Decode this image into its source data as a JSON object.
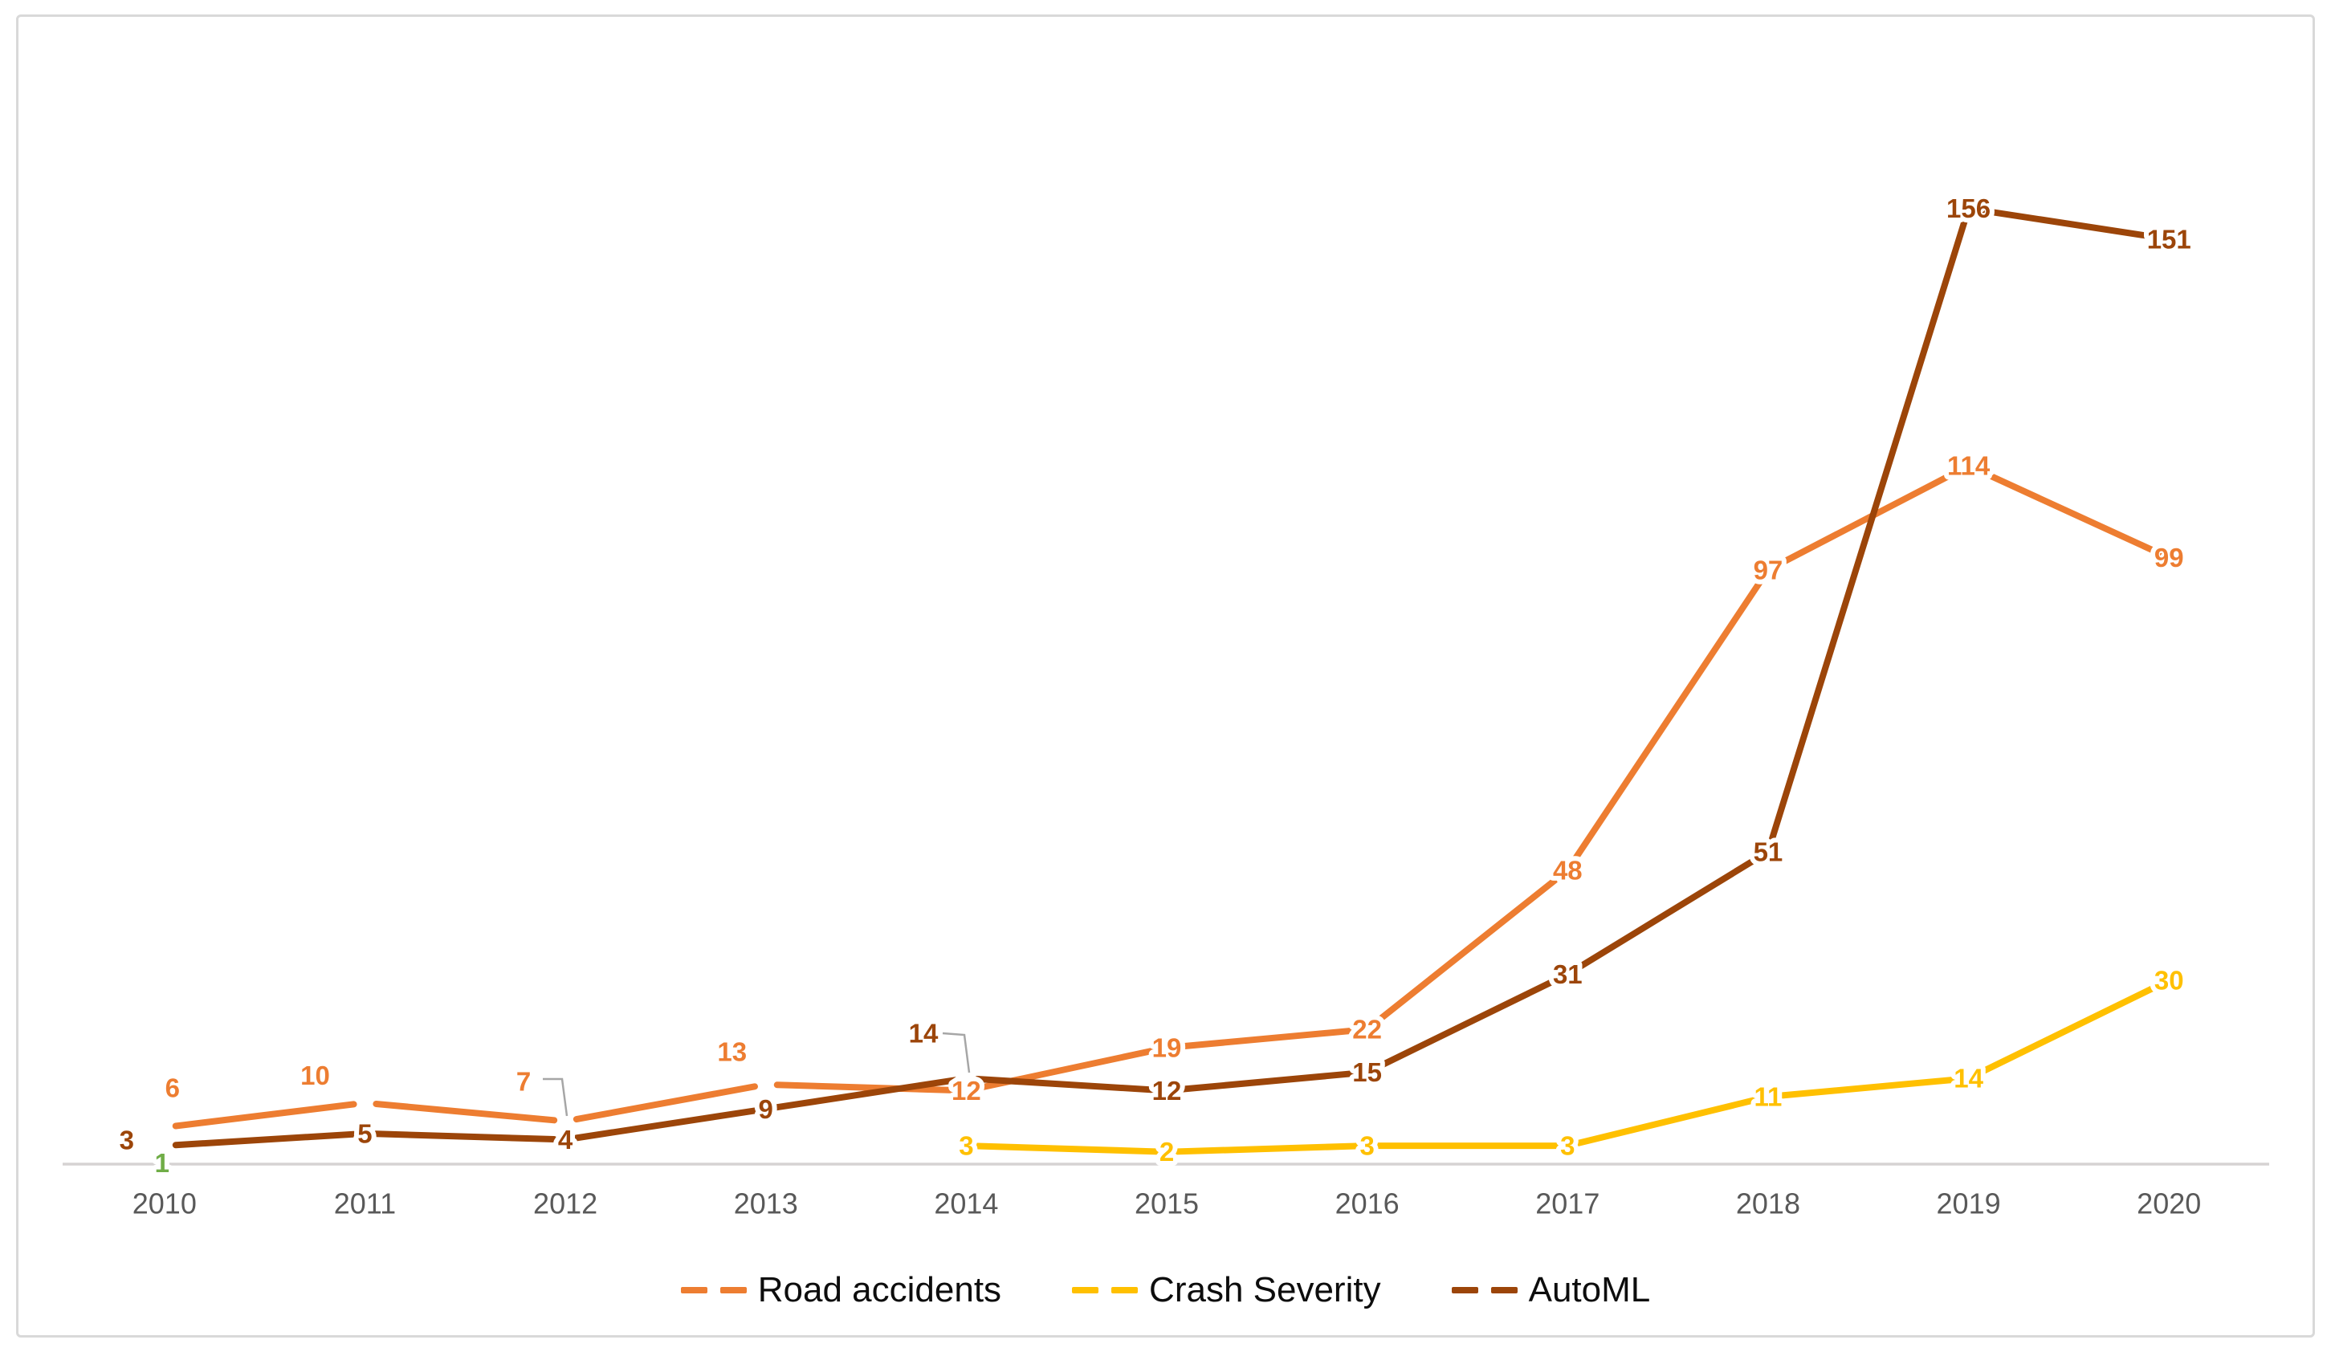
{
  "chart_data": {
    "type": "line",
    "title": "",
    "xlabel": "",
    "ylabel": "",
    "categories": [
      "2010",
      "2011",
      "2012",
      "2013",
      "2014",
      "2015",
      "2016",
      "2017",
      "2018",
      "2019",
      "2020"
    ],
    "series": [
      {
        "name": "Road accidents",
        "color": "#ED7D31",
        "values": [
          6,
          10,
          7,
          13,
          12,
          19,
          22,
          48,
          97,
          114,
          99
        ]
      },
      {
        "name": "Crash Severity",
        "color": "#FFC000",
        "values": [
          1,
          null,
          null,
          null,
          3,
          2,
          3,
          3,
          11,
          14,
          30
        ],
        "label_color_overrides": {
          "0": "#70AD47"
        }
      },
      {
        "name": "AutoML",
        "color": "#9C4509",
        "values": [
          3,
          5,
          4,
          9,
          14,
          12,
          15,
          31,
          51,
          156,
          151
        ]
      }
    ],
    "ylim": [
      0,
      160
    ],
    "grid": false,
    "data_labels": true,
    "legend_position": "bottom",
    "axis_line_color": "#d6d3d3",
    "tick_label_color": "#595959",
    "leader_line_color": "#a6a6a6"
  },
  "legend": {
    "items": [
      {
        "label": "Road accidents",
        "color": "#ED7D31"
      },
      {
        "label": "Crash Severity",
        "color": "#FFC000"
      },
      {
        "label": "AutoML",
        "color": "#9C4509"
      }
    ]
  }
}
